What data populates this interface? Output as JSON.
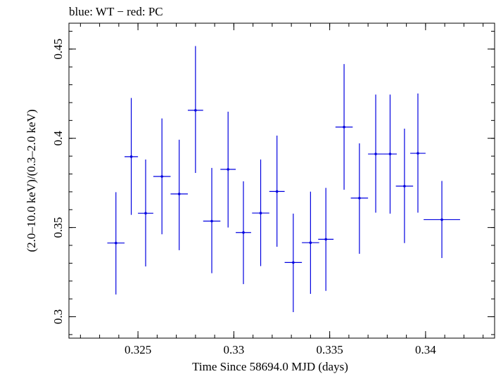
{
  "chart_data": {
    "type": "scatter",
    "title": "blue: WT − red: PC",
    "xlabel": "Time Since 58694.0 MJD (days)",
    "ylabel": "(2.0–10.0 keV)/(0.3–2.0 keV)",
    "xlim": [
      0.3214,
      0.3436
    ],
    "ylim": [
      0.288,
      0.4645
    ],
    "xticks": [
      {
        "value": 0.325,
        "label": "0.325"
      },
      {
        "value": 0.33,
        "label": "0.33"
      },
      {
        "value": 0.335,
        "label": "0.335"
      },
      {
        "value": 0.34,
        "label": "0.34"
      }
    ],
    "yticks": [
      {
        "value": 0.3,
        "label": "0.3"
      },
      {
        "value": 0.35,
        "label": "0.35"
      },
      {
        "value": 0.4,
        "label": "0.4"
      },
      {
        "value": 0.45,
        "label": "0.45"
      }
    ],
    "x_minor_step": 0.001,
    "y_minor_step": 0.01,
    "grid": false,
    "series": [
      {
        "color": "#0000e0",
        "points": [
          {
            "x": 0.32385,
            "xerr": 0.00045,
            "y": 0.3413,
            "yerr": [
              0.3125,
              0.3698
            ]
          },
          {
            "x": 0.32465,
            "xerr": 0.00035,
            "y": 0.3897,
            "yerr": [
              0.3571,
              0.4226
            ]
          },
          {
            "x": 0.3254,
            "xerr": 0.0004,
            "y": 0.358,
            "yerr": [
              0.3282,
              0.3881
            ]
          },
          {
            "x": 0.32625,
            "xerr": 0.00045,
            "y": 0.3786,
            "yerr": [
              0.3462,
              0.4111
            ]
          },
          {
            "x": 0.32715,
            "xerr": 0.00045,
            "y": 0.3688,
            "yerr": [
              0.3373,
              0.3992
            ]
          },
          {
            "x": 0.328,
            "xerr": 0.0004,
            "y": 0.4157,
            "yerr": [
              0.3806,
              0.4517
            ]
          },
          {
            "x": 0.32885,
            "xerr": 0.00045,
            "y": 0.3536,
            "yerr": [
              0.3244,
              0.3834
            ]
          },
          {
            "x": 0.3297,
            "xerr": 0.0004,
            "y": 0.3826,
            "yerr": [
              0.35,
              0.4149
            ]
          },
          {
            "x": 0.3305,
            "xerr": 0.0004,
            "y": 0.3472,
            "yerr": [
              0.3183,
              0.3759
            ]
          },
          {
            "x": 0.3314,
            "xerr": 0.00045,
            "y": 0.3581,
            "yerr": [
              0.3284,
              0.3881
            ]
          },
          {
            "x": 0.33225,
            "xerr": 0.0004,
            "y": 0.3702,
            "yerr": [
              0.3392,
              0.4015
            ]
          },
          {
            "x": 0.3331,
            "xerr": 0.00045,
            "y": 0.3304,
            "yerr": [
              0.3026,
              0.3578
            ]
          },
          {
            "x": 0.334,
            "xerr": 0.00045,
            "y": 0.3415,
            "yerr": [
              0.3128,
              0.3701
            ]
          },
          {
            "x": 0.3348,
            "xerr": 0.0004,
            "y": 0.3434,
            "yerr": [
              0.3145,
              0.3722
            ]
          },
          {
            "x": 0.33575,
            "xerr": 0.00045,
            "y": 0.4063,
            "yerr": [
              0.3712,
              0.4416
            ]
          },
          {
            "x": 0.33655,
            "xerr": 0.00045,
            "y": 0.3665,
            "yerr": [
              0.3353,
              0.3972
            ]
          },
          {
            "x": 0.3374,
            "xerr": 0.0004,
            "y": 0.3912,
            "yerr": [
              0.3583,
              0.4245
            ]
          },
          {
            "x": 0.33815,
            "xerr": 0.00035,
            "y": 0.3912,
            "yerr": [
              0.3578,
              0.4245
            ]
          },
          {
            "x": 0.3389,
            "xerr": 0.00045,
            "y": 0.3732,
            "yerr": [
              0.3413,
              0.4054
            ]
          },
          {
            "x": 0.3396,
            "xerr": 0.0004,
            "y": 0.3916,
            "yerr": [
              0.3583,
              0.4251
            ]
          },
          {
            "x": 0.34085,
            "xerr": 0.00095,
            "y": 0.3544,
            "yerr": [
              0.3329,
              0.3761
            ]
          }
        ]
      }
    ]
  }
}
